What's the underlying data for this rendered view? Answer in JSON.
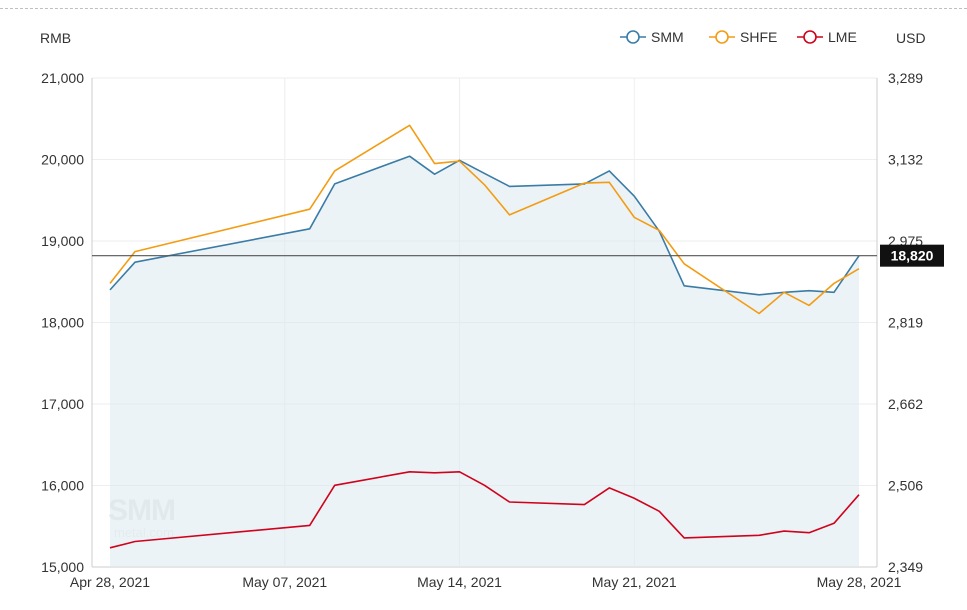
{
  "chart_data": {
    "type": "line",
    "left_axis_label": "RMB",
    "right_axis_label": "USD",
    "left_ticks": [
      "21,000",
      "20,000",
      "19,000",
      "18,000",
      "17,000",
      "16,000",
      "15,000"
    ],
    "right_ticks": [
      "3,289",
      "3,132",
      "2,975",
      "2,819",
      "2,662",
      "2,506",
      "2,349"
    ],
    "ylim_left": [
      15000,
      21000
    ],
    "ylim_right": [
      2349,
      3289
    ],
    "x_tick_labels": [
      "Apr 28, 2021",
      "May 07, 2021",
      "May 14, 2021",
      "May 21, 2021",
      "May 28, 2021"
    ],
    "x": [
      "2021-04-28",
      "2021-04-29",
      "2021-05-06",
      "2021-05-07",
      "2021-05-10",
      "2021-05-11",
      "2021-05-12",
      "2021-05-13",
      "2021-05-14",
      "2021-05-17",
      "2021-05-18",
      "2021-05-19",
      "2021-05-20",
      "2021-05-21",
      "2021-05-24",
      "2021-05-25",
      "2021-05-26",
      "2021-05-27",
      "2021-05-28"
    ],
    "series": [
      {
        "name": "SMM",
        "axis": "left",
        "color": "#3a7ca5",
        "area": true,
        "values": [
          18400,
          18740,
          19150,
          19700,
          20040,
          19820,
          19990,
          19830,
          19670,
          19700,
          19860,
          19550,
          19120,
          18450,
          18340,
          18370,
          18390,
          18370,
          18820
        ]
      },
      {
        "name": "SHFE",
        "axis": "left",
        "color": "#f39c12",
        "area": false,
        "values": [
          18480,
          18870,
          19390,
          19860,
          20420,
          19950,
          19980,
          19690,
          19320,
          19710,
          19720,
          19290,
          19130,
          18720,
          18110,
          18370,
          18210,
          18480,
          18660
        ]
      },
      {
        "name": "LME",
        "axis": "right",
        "color": "#d0021b",
        "area": false,
        "values": [
          2386,
          2398,
          2429,
          2506,
          2532,
          2530,
          2532,
          2506,
          2474,
          2469,
          2501,
          2481,
          2456,
          2405,
          2410,
          2418,
          2415,
          2433,
          2488
        ]
      }
    ],
    "current_price_label": "18,820",
    "current_price_value": 18820,
    "grid": true,
    "legend_position": "top-right"
  }
}
